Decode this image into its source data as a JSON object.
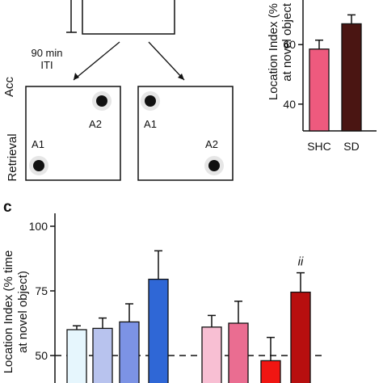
{
  "panel_c_label": "c",
  "diagram": {
    "acc_label": "Acc",
    "iti_label_line1": "90 min",
    "iti_label_line2": "ITI",
    "retrieval_label": "Retrieval",
    "arena_left": {
      "obj1_label": "A2",
      "obj2_label": "A1"
    },
    "arena_right": {
      "obj1_label": "A1",
      "obj2_label": "A2"
    }
  },
  "chart_data": [
    {
      "type": "bar",
      "ylabel_line1": "Location Index (%",
      "ylabel_line2": "at novel object",
      "categories": [
        "SHC",
        "SD"
      ],
      "values": [
        58.5,
        67
      ],
      "errors": [
        3,
        3
      ],
      "colors": [
        "#ee5a7e",
        "#4a1512"
      ],
      "yticks": [
        40,
        60
      ],
      "ylim": [
        31,
        75
      ]
    },
    {
      "type": "bar",
      "ylabel_line1": "Location Index (% time",
      "ylabel_line2": "at novel object)",
      "yticks": [
        50,
        75,
        100
      ],
      "ylim": [
        45,
        100
      ],
      "reference_line": 50,
      "annotation": "ii",
      "groups": [
        {
          "values": [
            60,
            60.5,
            63,
            79.5
          ],
          "errors": [
            1.5,
            4,
            7,
            11
          ],
          "colors": [
            "#e6f6fd",
            "#b8c3ee",
            "#7c93e5",
            "#2f67d6"
          ]
        },
        {
          "values": [
            61,
            62.5,
            48,
            74.5
          ],
          "errors": [
            4.5,
            8.5,
            9,
            7.5
          ],
          "colors": [
            "#f8bfd3",
            "#ea6d91",
            "#f01612",
            "#b70f0f"
          ]
        }
      ]
    }
  ]
}
